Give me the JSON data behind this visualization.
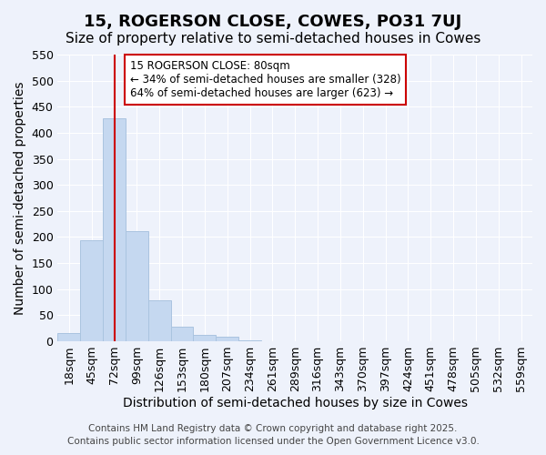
{
  "title": "15, ROGERSON CLOSE, COWES, PO31 7UJ",
  "subtitle": "Size of property relative to semi-detached houses in Cowes",
  "xlabel": "Distribution of semi-detached houses by size in Cowes",
  "ylabel": "Number of semi-detached properties",
  "bar_values": [
    15,
    193,
    428,
    211,
    78,
    28,
    13,
    8,
    1,
    0,
    0,
    0,
    0,
    0,
    0,
    0,
    0,
    0,
    0,
    0,
    0
  ],
  "bin_labels": [
    "18sqm",
    "45sqm",
    "72sqm",
    "99sqm",
    "126sqm",
    "153sqm",
    "180sqm",
    "207sqm",
    "234sqm",
    "261sqm",
    "289sqm",
    "316sqm",
    "343sqm",
    "370sqm",
    "397sqm",
    "424sqm",
    "451sqm",
    "478sqm",
    "505sqm",
    "532sqm",
    "559sqm"
  ],
  "bar_color": "#c5d8f0",
  "bar_edge_color": "#aac4e0",
  "vline_x": 2,
  "vline_color": "#cc0000",
  "ylim": [
    0,
    550
  ],
  "yticks": [
    0,
    50,
    100,
    150,
    200,
    250,
    300,
    350,
    400,
    450,
    500,
    550
  ],
  "annotation_title": "15 ROGERSON CLOSE: 80sqm",
  "annotation_line1": "← 34% of semi-detached houses are smaller (328)",
  "annotation_line2": "64% of semi-detached houses are larger (623) →",
  "annotation_box_color": "#ffffff",
  "annotation_box_edge": "#cc0000",
  "footer_line1": "Contains HM Land Registry data © Crown copyright and database right 2025.",
  "footer_line2": "Contains public sector information licensed under the Open Government Licence v3.0.",
  "bg_color": "#eef2fb",
  "grid_color": "#ffffff",
  "title_fontsize": 13,
  "subtitle_fontsize": 11,
  "axis_label_fontsize": 10,
  "tick_fontsize": 9,
  "footer_fontsize": 7.5
}
